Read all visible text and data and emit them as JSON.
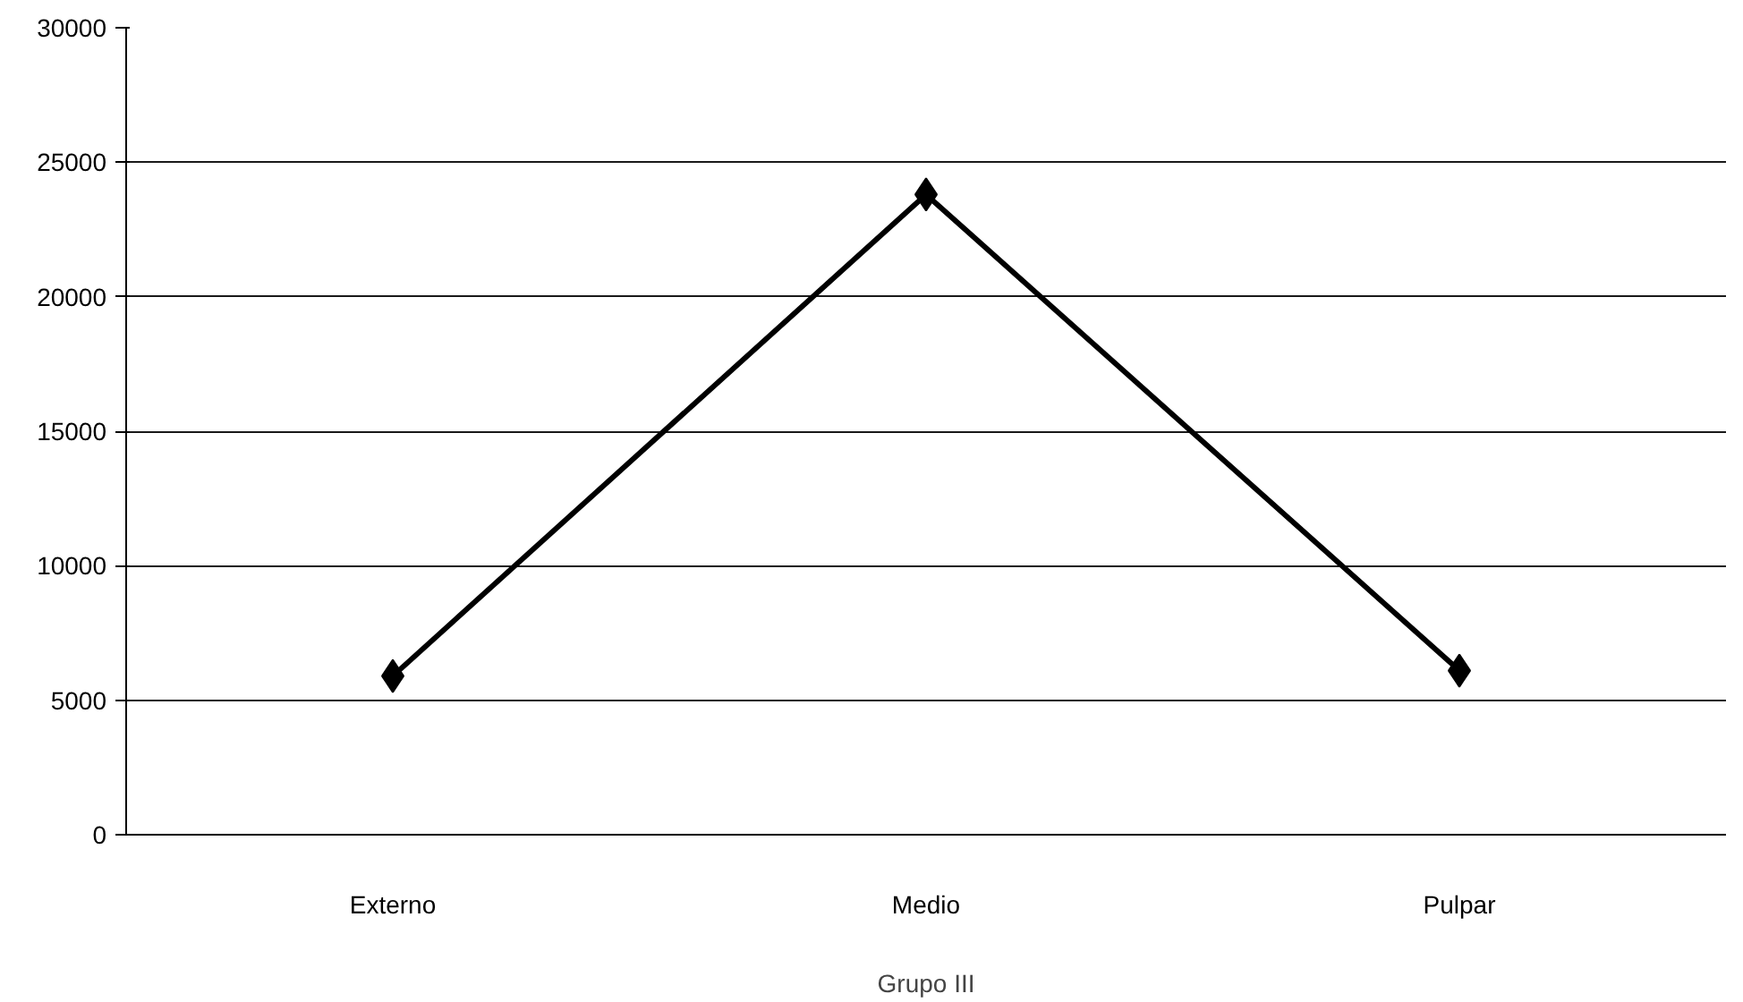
{
  "chart_data": {
    "type": "line",
    "xlabel": "Grupo III",
    "categories": [
      "Externo",
      "Medio",
      "Pulpar"
    ],
    "series": [
      {
        "color": "#000000",
        "values": [
          5900,
          23800,
          6100
        ]
      }
    ],
    "ylim": [
      0,
      30000
    ],
    "yticks": [
      0,
      5000,
      10000,
      15000,
      20000,
      25000,
      30000
    ],
    "grid": "y",
    "marker": "diamond",
    "line_style": "solid"
  }
}
